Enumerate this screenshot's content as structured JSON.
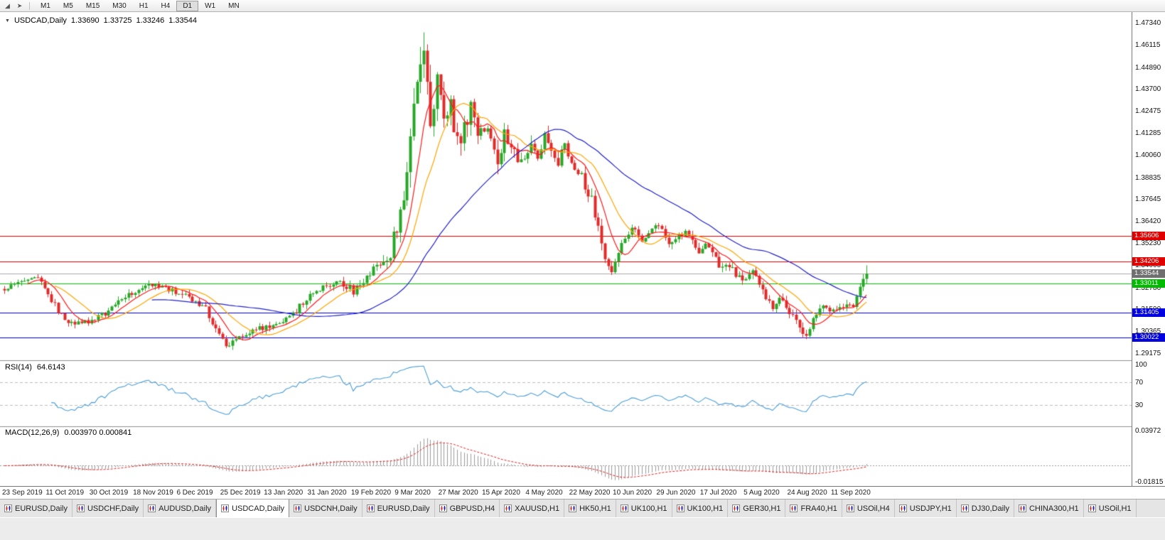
{
  "colors": {
    "up": "#28a828",
    "down": "#e12b2b",
    "ma_fast": "#ff1a1a",
    "ma_mid": "#ffa500",
    "ma_slow": "#2424c8",
    "rsi": "#4d9fd6",
    "macd_hist": "#9b9b9b",
    "macd_signal": "#dd2222",
    "current_price_line": "#aaaaaa"
  },
  "toolbar": {
    "icons": [
      {
        "name": "chart-mode-icon",
        "glyph": "◢"
      },
      {
        "name": "scroll-to-end-icon",
        "glyph": "➤"
      }
    ],
    "timeframes": [
      "M1",
      "M5",
      "M15",
      "M30",
      "H1",
      "H4",
      "D1",
      "W1",
      "MN"
    ],
    "active_timeframe": "D1"
  },
  "window": {
    "collapse_icon": "▼",
    "symbol": "USDCAD,Daily",
    "open": "1.33690",
    "high": "1.33725",
    "low": "1.33246",
    "close": "1.33544"
  },
  "price_scale": {
    "ticks": [
      "1.47340",
      "1.46115",
      "1.44890",
      "1.43700",
      "1.42475",
      "1.41285",
      "1.40060",
      "1.38835",
      "1.37645",
      "1.36420",
      "1.35230",
      "1.34005",
      "1.32780",
      "1.31590",
      "1.30365",
      "1.29175"
    ]
  },
  "levels": [
    {
      "label": "1.35606",
      "value": 1.35606,
      "color": "#e00000"
    },
    {
      "label": "1.34206",
      "value": 1.34206,
      "color": "#e00000"
    },
    {
      "label": "1.33011",
      "value": 1.33011,
      "color": "#00bb00"
    },
    {
      "label": "1.31405",
      "value": 1.31405,
      "color": "#0000e0"
    },
    {
      "label": "1.30022",
      "value": 1.30022,
      "color": "#0000e0"
    }
  ],
  "current_price": {
    "label": "1.33544",
    "value": 1.33544,
    "tag_color": "#6f6f6f"
  },
  "rsi": {
    "name": "RSI(14)",
    "value": "64.6143",
    "scale": [
      {
        "label": "100",
        "value": 100
      },
      {
        "label": "70",
        "value": 70
      },
      {
        "label": "30",
        "value": 30
      }
    ],
    "levels": [
      70,
      30
    ]
  },
  "macd": {
    "name": "MACD(12,26,9)",
    "values": "0.003970 0.000841",
    "scale_max": 0.03972,
    "scale_min": -0.01815,
    "scale_max_label": "0.03972",
    "scale_min_label": "-0.01815"
  },
  "dates": [
    "23 Sep 2019",
    "11 Oct 2019",
    "30 Oct 2019",
    "18 Nov 2019",
    "6 Dec 2019",
    "25 Dec 2019",
    "13 Jan 2020",
    "31 Jan 2020",
    "19 Feb 2020",
    "9 Mar 2020",
    "27 Mar 2020",
    "15 Apr 2020",
    "4 May 2020",
    "22 May 2020",
    "10 Jun 2020",
    "29 Jun 2020",
    "17 Jul 2020",
    "5 Aug 2020",
    "24 Aug 2020",
    "11 Sep 2020"
  ],
  "tabs": {
    "active_index": 3,
    "items": [
      "EURUSD,Daily",
      "USDCHF,Daily",
      "AUDUSD,Daily",
      "USDCAD,Daily",
      "USDCNH,Daily",
      "EURUSD,Daily",
      "GBPUSD,H4",
      "XAUUSD,H1",
      "HK50,H1",
      "UK100,H1",
      "UK100,H1",
      "GER30,H1",
      "FRA40,H1",
      "USOil,H4",
      "USDJPY,H1",
      "DJ30,Daily",
      "CHINA300,H1",
      "USOil,H1"
    ]
  },
  "chart_data": {
    "type": "candlestick",
    "symbol": "USDCAD",
    "timeframe": "Daily",
    "title": "USDCAD,Daily",
    "x_range": [
      "23 Sep 2019",
      "24 Sep 2020"
    ],
    "y_range": [
      1.289,
      1.478
    ],
    "num_candles": 258,
    "last_close": 1.33544,
    "ohlc_current": {
      "open": 1.3369,
      "high": 1.33725,
      "low": 1.33246,
      "close": 1.33544
    },
    "horizontal_levels": [
      1.35606,
      1.34206,
      1.33011,
      1.31405,
      1.30022
    ],
    "moving_averages": [
      {
        "period": 8,
        "color_key": "ma_fast"
      },
      {
        "period": 16,
        "color_key": "ma_mid"
      },
      {
        "period": 45,
        "color_key": "ma_slow"
      }
    ],
    "indicators": [
      {
        "name": "RSI",
        "period": 14,
        "current": 64.6143
      },
      {
        "name": "MACD",
        "fast": 12,
        "slow": 26,
        "signal": 9,
        "current_macd": 0.00397,
        "current_signal": 0.000841
      }
    ],
    "close_anchors": [
      [
        0,
        1.3265
      ],
      [
        3,
        1.33
      ],
      [
        6,
        1.333
      ],
      [
        9,
        1.3345
      ],
      [
        12,
        1.327
      ],
      [
        15,
        1.318
      ],
      [
        18,
        1.31
      ],
      [
        21,
        1.307
      ],
      [
        24,
        1.309
      ],
      [
        27,
        1.311
      ],
      [
        30,
        1.314
      ],
      [
        33,
        1.318
      ],
      [
        36,
        1.323
      ],
      [
        39,
        1.326
      ],
      [
        42,
        1.329
      ],
      [
        45,
        1.33
      ],
      [
        48,
        1.328
      ],
      [
        51,
        1.325
      ],
      [
        54,
        1.323
      ],
      [
        57,
        1.319
      ],
      [
        60,
        1.316
      ],
      [
        62,
        1.309
      ],
      [
        64,
        1.302
      ],
      [
        66,
        1.2965
      ],
      [
        68,
        1.2985
      ],
      [
        70,
        1.3005
      ],
      [
        73,
        1.303
      ],
      [
        76,
        1.305
      ],
      [
        79,
        1.306
      ],
      [
        82,
        1.3085
      ],
      [
        85,
        1.312
      ],
      [
        88,
        1.317
      ],
      [
        91,
        1.323
      ],
      [
        94,
        1.3265
      ],
      [
        97,
        1.329
      ],
      [
        100,
        1.331
      ],
      [
        102,
        1.329
      ],
      [
        104,
        1.325
      ],
      [
        106,
        1.329
      ],
      [
        108,
        1.333
      ],
      [
        110,
        1.338
      ],
      [
        112,
        1.341
      ],
      [
        114,
        1.34
      ],
      [
        117,
        1.362
      ],
      [
        119,
        1.376
      ],
      [
        121,
        1.405
      ],
      [
        123,
        1.445
      ],
      [
        125,
        1.462
      ],
      [
        127,
        1.42
      ],
      [
        129,
        1.442
      ],
      [
        131,
        1.415
      ],
      [
        133,
        1.428
      ],
      [
        135,
        1.406
      ],
      [
        137,
        1.416
      ],
      [
        139,
        1.426
      ],
      [
        141,
        1.411
      ],
      [
        143,
        1.417
      ],
      [
        145,
        1.406
      ],
      [
        147,
        1.399
      ],
      [
        149,
        1.412
      ],
      [
        151,
        1.407
      ],
      [
        153,
        1.394
      ],
      [
        155,
        1.401
      ],
      [
        157,
        1.408
      ],
      [
        159,
        1.399
      ],
      [
        161,
        1.412
      ],
      [
        163,
        1.406
      ],
      [
        165,
        1.398
      ],
      [
        167,
        1.407
      ],
      [
        169,
        1.399
      ],
      [
        171,
        1.392
      ],
      [
        173,
        1.384
      ],
      [
        175,
        1.376
      ],
      [
        177,
        1.362
      ],
      [
        179,
        1.346
      ],
      [
        181,
        1.338
      ],
      [
        183,
        1.345
      ],
      [
        185,
        1.356
      ],
      [
        187,
        1.362
      ],
      [
        189,
        1.357
      ],
      [
        191,
        1.353
      ],
      [
        193,
        1.358
      ],
      [
        195,
        1.362
      ],
      [
        197,
        1.356
      ],
      [
        199,
        1.351
      ],
      [
        201,
        1.355
      ],
      [
        203,
        1.358
      ],
      [
        205,
        1.352
      ],
      [
        207,
        1.348
      ],
      [
        209,
        1.353
      ],
      [
        211,
        1.347
      ],
      [
        213,
        1.34
      ],
      [
        215,
        1.342
      ],
      [
        217,
        1.337
      ],
      [
        219,
        1.334
      ],
      [
        221,
        1.331
      ],
      [
        223,
        1.336
      ],
      [
        225,
        1.329
      ],
      [
        227,
        1.323
      ],
      [
        229,
        1.318
      ],
      [
        231,
        1.322
      ],
      [
        233,
        1.316
      ],
      [
        235,
        1.311
      ],
      [
        237,
        1.306
      ],
      [
        239,
        1.301
      ],
      [
        241,
        1.31
      ],
      [
        243,
        1.315
      ],
      [
        245,
        1.318
      ],
      [
        247,
        1.315
      ],
      [
        249,
        1.317
      ],
      [
        251,
        1.32
      ],
      [
        253,
        1.318
      ],
      [
        255,
        1.329
      ],
      [
        257,
        1.33544
      ]
    ],
    "volatility_anchors": [
      [
        0,
        0.0035
      ],
      [
        60,
        0.0038
      ],
      [
        110,
        0.0048
      ],
      [
        117,
        0.0095
      ],
      [
        122,
        0.016
      ],
      [
        128,
        0.016
      ],
      [
        135,
        0.012
      ],
      [
        145,
        0.0095
      ],
      [
        160,
        0.0075
      ],
      [
        175,
        0.007
      ],
      [
        190,
        0.0052
      ],
      [
        210,
        0.0045
      ],
      [
        235,
        0.005
      ],
      [
        245,
        0.004
      ],
      [
        257,
        0.0048
      ]
    ],
    "forced": {
      "peak_index": 125,
      "peak_high": 1.468,
      "low_index": 239,
      "low_value": 1.2994,
      "last_high": 1.34
    }
  }
}
